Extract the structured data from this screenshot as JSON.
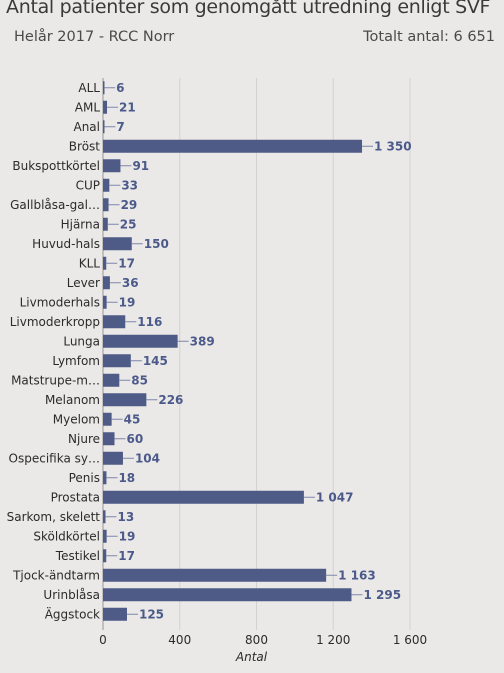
{
  "header": {
    "title": "Antal patienter som genomgått utredning enligt SVF",
    "subtitle": "Helår 2017 - RCC Norr",
    "total": "Totalt antal: 6 651"
  },
  "colors": {
    "bar": "#4f5b87",
    "value_label": "#4b5a8a",
    "grid": "#d4d2cf",
    "background": "#ebe9e7"
  },
  "chart_data": {
    "type": "bar",
    "orientation": "horizontal",
    "categories": [
      "ALL",
      "AML",
      "Anal",
      "Bröst",
      "Bukspottkörtel",
      "CUP",
      "Gallblåsa-gal…",
      "Hjärna",
      "Huvud-hals",
      "KLL",
      "Lever",
      "Livmoderhals",
      "Livmoderkropp",
      "Lunga",
      "Lymfom",
      "Matstrupe-m…",
      "Melanom",
      "Myelom",
      "Njure",
      "Ospecifika sy…",
      "Penis",
      "Prostata",
      "Sarkom, skelett",
      "Sköldkörtel",
      "Testikel",
      "Tjock-ändtarm",
      "Urinblåsa",
      "Äggstock"
    ],
    "values": [
      6,
      21,
      7,
      1350,
      91,
      33,
      29,
      25,
      150,
      17,
      36,
      19,
      116,
      389,
      145,
      85,
      226,
      45,
      60,
      104,
      18,
      1047,
      13,
      19,
      17,
      1163,
      1295,
      125
    ],
    "value_labels": [
      "6",
      "21",
      "7",
      "1 350",
      "91",
      "33",
      "29",
      "25",
      "150",
      "17",
      "36",
      "19",
      "116",
      "389",
      "145",
      "85",
      "226",
      "45",
      "60",
      "104",
      "18",
      "1 047",
      "13",
      "19",
      "17",
      "1 163",
      "1 295",
      "125"
    ],
    "xlim": [
      0,
      1600
    ],
    "xticks": [
      0,
      400,
      800,
      1200,
      1600
    ],
    "xtick_labels": [
      "0",
      "400",
      "800",
      "1 200",
      "1 600"
    ],
    "xlabel": "Antal",
    "grid": "vertical"
  }
}
